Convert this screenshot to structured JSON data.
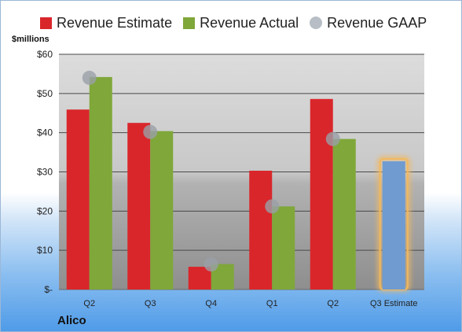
{
  "unit_label": "$millions",
  "company": "Alico",
  "colors": {
    "estimate": "#d9262b",
    "actual": "#7fa73a",
    "gaap": "#9aa0a8",
    "projected": "#6f9bd0",
    "projected_glow": "#f0b860"
  },
  "legend": [
    {
      "label": "Revenue Estimate",
      "color": "#d9262b",
      "icon": "square-swatch"
    },
    {
      "label": "Revenue Actual",
      "color": "#7fa73a",
      "icon": "square-swatch"
    },
    {
      "label": "Revenue GAAP",
      "color": "#b8bec6",
      "icon": "circle-swatch"
    }
  ],
  "chart_data": {
    "type": "bar",
    "categories": [
      "Q2",
      "Q3",
      "Q4",
      "Q1",
      "Q2",
      "Q3 Estimate"
    ],
    "series": [
      {
        "name": "Revenue Estimate",
        "values": [
          45.9,
          42.5,
          5.8,
          30.3,
          48.6,
          null
        ]
      },
      {
        "name": "Revenue Actual",
        "values": [
          54.2,
          40.4,
          6.5,
          21.2,
          38.4,
          32.7
        ]
      },
      {
        "name": "Revenue GAAP",
        "type": "scatter",
        "values": [
          54.0,
          40.2,
          6.4,
          21.2,
          38.4,
          null
        ]
      }
    ],
    "projected_category": "Q3 Estimate",
    "ylim": [
      0,
      60
    ],
    "yticks": [
      0,
      10,
      20,
      30,
      40,
      50,
      60
    ],
    "ytick_labels": [
      "$-",
      "$10",
      "$20",
      "$30",
      "$40",
      "$50",
      "$60"
    ],
    "grid": true,
    "legend_position": "top"
  }
}
